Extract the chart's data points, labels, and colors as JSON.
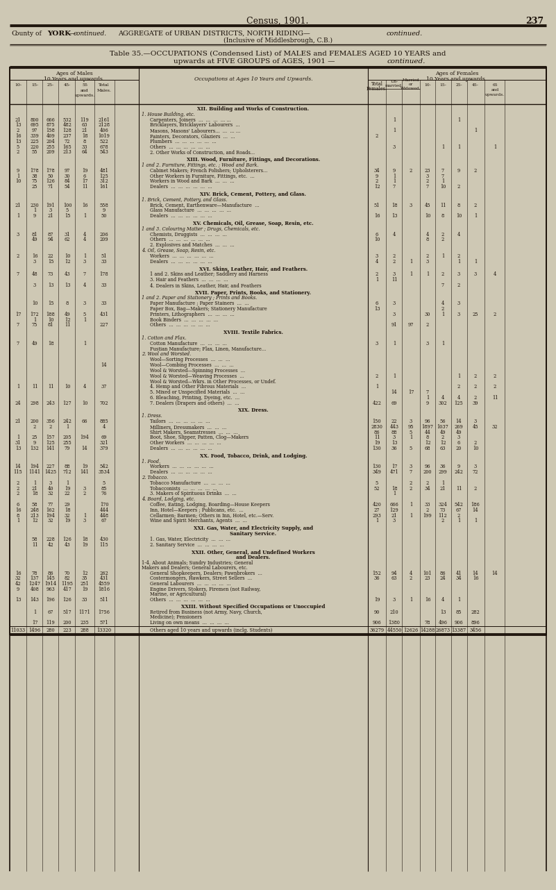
{
  "page_bg": "#cec8b4",
  "text_color": "#1a1008",
  "page_num": "237",
  "census_title": "Census, 1901.",
  "header1a": "County of ",
  "header1b": "York",
  "header1c": "—",
  "header1d": "continued.",
  "header2": "AGGREGATE of URBAN DISTRICTS, NORTH RIDING—",
  "header2b": "continued.",
  "header3": "(Inclusive of Middlesbrough, C.B.)",
  "table_title1": "Table 35.—OCCUPATIONS (Condensed List) of MALES and FEMALES AGED 10 YEARS and",
  "table_title2": "upwards at FIVE GROUPS of AGES, 1901 —",
  "table_title2b": "continued.",
  "male_hdr": "Ages of Males",
  "male_hdr2": "10 Years and upwards.",
  "female_hdr": "Ages of Females",
  "female_hdr2": "10 Years and upwards.",
  "occ_hdr": "Occupations at Ages 10 Years and Upwards.",
  "total_fem": "Total\nFemales.",
  "unmarried": "Un-\nmarried.",
  "married": "Married\nor\nWidowed.",
  "col_65": "65\nand upwards."
}
